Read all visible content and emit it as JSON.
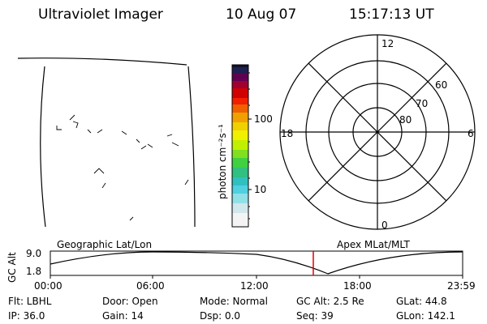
{
  "header": {
    "title": "Ultraviolet Imager",
    "date": "10 Aug 07",
    "time": "15:17:13 UT"
  },
  "colorbar": {
    "unit_label": "photon cm⁻²s⁻¹",
    "tick_100": "100",
    "tick_10": "10",
    "colors": [
      "#ffffff",
      "#e0e0e0",
      "#40d0e0",
      "#30c040",
      "#80e020",
      "#f0f000",
      "#f0b000",
      "#f07000",
      "#e00000",
      "#b00000",
      "#800040",
      "#202040"
    ]
  },
  "polar": {
    "label_top": "12",
    "label_bottom": "0",
    "label_left": "18",
    "label_right": "6",
    "lat_60": "60",
    "lat_70": "70",
    "lat_80": "80"
  },
  "alt_plot": {
    "y_axis_label": "GC Alt",
    "y_max": "9.0",
    "y_min": "1.8",
    "left_title": "Geographic Lat/Lon",
    "right_title": "Apex  MLat/MLT",
    "x_ticks": [
      "00:00",
      "06:00",
      "12:00",
      "18:00",
      "23:59"
    ],
    "current_marker_color": "#e00000"
  },
  "info": {
    "row1": {
      "filter": "Flt: LBHL",
      "door": "Door: Open",
      "mode": "Mode: Normal",
      "gc_alt": "GC Alt: 2.5 Re",
      "glat": "GLat:  44.8"
    },
    "row2": {
      "ip": "IP: 36.0",
      "gain": "Gain: 14",
      "dsp": "Dsp:    0.0",
      "seq": "Seq: 39",
      "glon": "GLon: 142.1"
    }
  }
}
